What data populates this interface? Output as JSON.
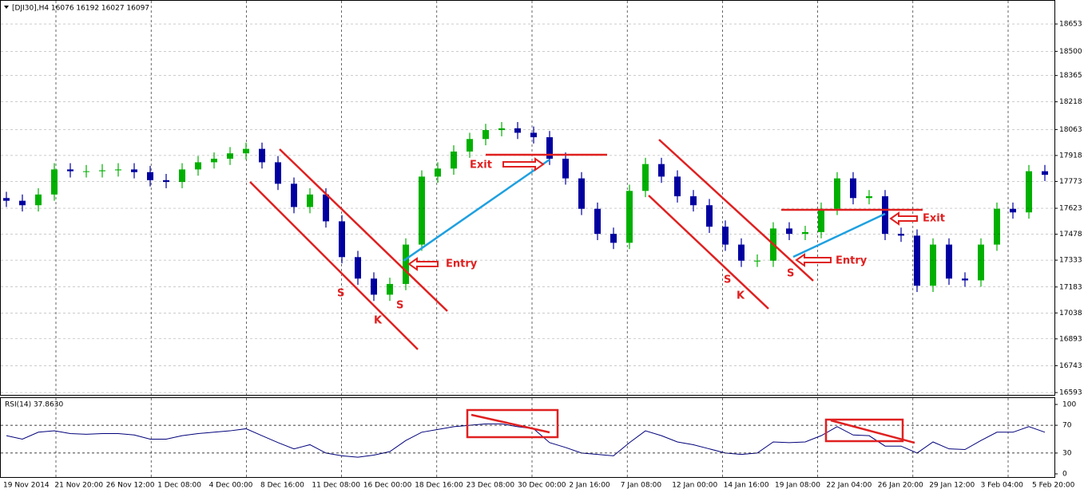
{
  "chart_data": [
    {
      "type": "candlestick",
      "title": "[DJI30],H4  16076 16192 16027 16097",
      "up_color": "#00b000",
      "down_color": "#0000a0",
      "open": [
        17680,
        17665,
        17640,
        17700,
        17840,
        17830,
        17830,
        17835,
        17840,
        17825,
        17780,
        17770,
        17840,
        17880,
        17900,
        17930,
        17955,
        17880,
        17760,
        17630,
        17700,
        17550,
        17350,
        17230,
        17140,
        17200,
        17420,
        17800,
        17845,
        17940,
        18010,
        18060,
        18070,
        18045,
        18020,
        17900,
        17790,
        17620,
        17480,
        17430,
        17720,
        17870,
        17800,
        17690,
        17640,
        17520,
        17420,
        17330,
        17330,
        17510,
        17480,
        17490,
        17620,
        17790,
        17680,
        17690,
        17480,
        17470,
        17190,
        17420,
        17230,
        17220,
        17420,
        17620,
        17600,
        17830
      ],
      "high": [
        17715,
        17700,
        17735,
        17875,
        17875,
        17865,
        17870,
        17875,
        17875,
        17860,
        17815,
        17875,
        17915,
        17935,
        17965,
        17990,
        17990,
        17915,
        17795,
        17735,
        17735,
        17585,
        17385,
        17265,
        17235,
        17455,
        17835,
        17880,
        17975,
        18045,
        18095,
        18105,
        18105,
        18080,
        18055,
        17935,
        17825,
        17655,
        17515,
        17755,
        17905,
        17905,
        17835,
        17725,
        17675,
        17555,
        17455,
        17365,
        17545,
        17545,
        17525,
        17655,
        17825,
        17825,
        17725,
        17725,
        17515,
        17505,
        17455,
        17455,
        17265,
        17455,
        17655,
        17655,
        17865,
        17865
      ],
      "low": [
        17630,
        17605,
        17605,
        17665,
        17795,
        17795,
        17795,
        17800,
        17790,
        17745,
        17735,
        17735,
        17805,
        17845,
        17865,
        17895,
        17845,
        17725,
        17595,
        17595,
        17515,
        17315,
        17195,
        17105,
        17105,
        17165,
        17385,
        17765,
        17810,
        17905,
        17975,
        18025,
        18010,
        17985,
        17865,
        17755,
        17585,
        17445,
        17395,
        17395,
        17685,
        17765,
        17655,
        17605,
        17485,
        17385,
        17295,
        17295,
        17295,
        17445,
        17445,
        17455,
        17585,
        17645,
        17645,
        17445,
        17435,
        17155,
        17155,
        17195,
        17185,
        17185,
        17385,
        17565,
        17565,
        17775
      ],
      "close": [
        17665,
        17640,
        17700,
        17840,
        17830,
        17830,
        17835,
        17840,
        17825,
        17780,
        17770,
        17840,
        17880,
        17900,
        17930,
        17955,
        17880,
        17760,
        17630,
        17700,
        17550,
        17350,
        17230,
        17140,
        17200,
        17420,
        17800,
        17845,
        17940,
        18010,
        18060,
        18070,
        18045,
        18020,
        17900,
        17790,
        17620,
        17480,
        17430,
        17720,
        17870,
        17800,
        17690,
        17640,
        17520,
        17420,
        17330,
        17330,
        17510,
        17480,
        17490,
        17620,
        17790,
        17680,
        17690,
        17480,
        17470,
        17190,
        17420,
        17230,
        17220,
        17420,
        17620,
        17600,
        17830,
        17810
      ],
      "ylim": [
        16580,
        18787
      ],
      "yticks": [
        18653,
        18500,
        18365,
        18218,
        18063,
        17918,
        17773,
        17623,
        17478,
        17333,
        17183,
        17038,
        16893,
        16743,
        16593
      ],
      "x_labels": [
        "19 Nov 2014",
        "21 Nov 20:00",
        "26 Nov 12:00",
        "1 Dec 08:00",
        "4 Dec 00:00",
        "8 Dec 16:00",
        "11 Dec 08:00",
        "16 Dec 00:00",
        "18 Dec 16:00",
        "23 Dec 08:00",
        "30 Dec 00:00",
        "2 Jan 16:00",
        "7 Jan 08:00",
        "12 Jan 00:00",
        "14 Jan 16:00",
        "19 Jan 08:00",
        "22 Jan 04:00",
        "26 Jan 20:00",
        "29 Jan 12:00",
        "3 Feb 04:00",
        "5 Feb 20:00"
      ],
      "annotations": [
        "S",
        "K",
        "S",
        "Entry",
        "Exit",
        "S",
        "K",
        "S",
        "Entry",
        "Exit"
      ]
    },
    {
      "type": "line",
      "title": "RSI(14) 37.8630",
      "color": "#00007a",
      "values": [
        55,
        50,
        60,
        62,
        58,
        57,
        58,
        58,
        56,
        50,
        50,
        55,
        58,
        60,
        62,
        65,
        55,
        45,
        36,
        42,
        30,
        26,
        24,
        27,
        32,
        48,
        60,
        64,
        68,
        70,
        72,
        72,
        68,
        65,
        45,
        38,
        30,
        28,
        26,
        45,
        62,
        55,
        46,
        42,
        36,
        30,
        28,
        30,
        46,
        45,
        46,
        55,
        68,
        56,
        55,
        40,
        40,
        30,
        46,
        36,
        35,
        48,
        60,
        60,
        68,
        60
      ],
      "ylim": [
        0,
        100
      ],
      "yticks": [
        100,
        70,
        30,
        0
      ],
      "levels": [
        70,
        30
      ]
    }
  ]
}
